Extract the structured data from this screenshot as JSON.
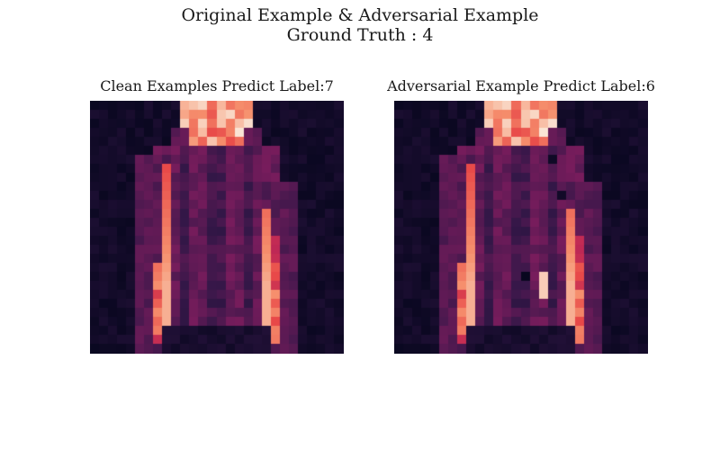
{
  "figure": {
    "title": "Original Example & Adversarial Example",
    "subtitle": "Ground Truth : 4"
  },
  "panels": [
    {
      "title": "Clean Examples Predict Label:7",
      "image": "fashion-mnist-coat-clean"
    },
    {
      "title": "Adversarial Example Predict Label:6",
      "image": "fashion-mnist-coat-adversarial"
    }
  ],
  "colormap": "rocket"
}
